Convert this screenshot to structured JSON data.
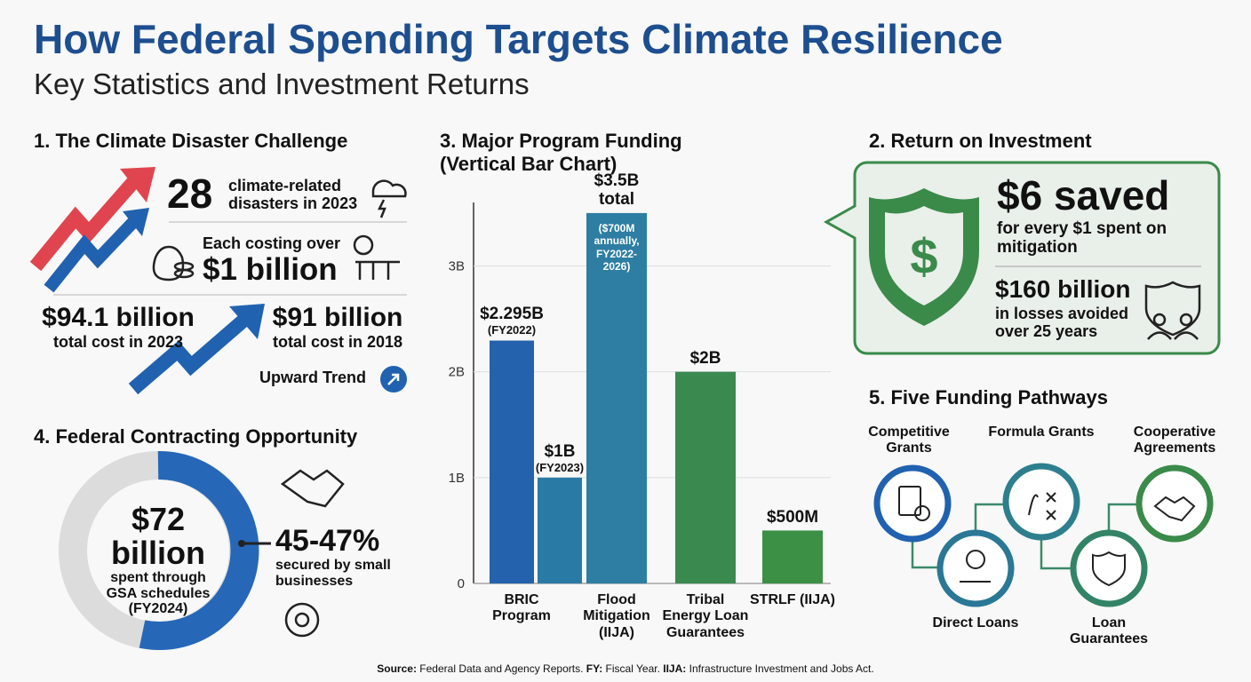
{
  "header": {
    "title": "How Federal Spending Targets Climate Resilience",
    "subtitle": "Key Statistics and Investment Returns"
  },
  "section1": {
    "title": "1. The Climate Disaster Challenge",
    "disasters_count": "28",
    "disasters_text": "climate-related disasters in 2023",
    "cost_each_label": "Each costing over",
    "cost_each_value": "$1 billion",
    "cost_2023_value": "$94.1 billion",
    "cost_2023_label": "total cost in 2023",
    "cost_2018_value": "$91 billion",
    "cost_2018_label": "total cost in 2018",
    "trend": "Upward Trend"
  },
  "section2": {
    "title": "2. Return on Investment",
    "roi_value": "$6 saved",
    "roi_text": "for every $1 spent on mitigation",
    "losses_value": "$160 billion",
    "losses_text": "in losses avoided over 25 years"
  },
  "chart_data": {
    "type": "bar",
    "title": "3. Major Program Funding (Vertical Bar Chart)",
    "categories": [
      "BRIC Program",
      null,
      "Flood Mitigation (IIJA)",
      "Tribal Energy Loan Guarantees",
      "STRLF (IIJA)"
    ],
    "values": [
      2.295,
      1,
      3.5,
      2,
      0.5
    ],
    "value_labels": [
      "$2.295B",
      "$1B",
      "$3.5B total",
      "$2B",
      "$500M"
    ],
    "value_notes": [
      "(FY2022)",
      "(FY2023)",
      "($700M annually, FY2022-2026)",
      null,
      null
    ],
    "colors": [
      "#2462ad",
      "#2a7aa6",
      "#2d7ea2",
      "#3a8a50",
      "#3b9046"
    ],
    "ylim": [
      0,
      3.6
    ],
    "yticks": [
      0,
      {
        "value": 1,
        "label": "1B"
      },
      {
        "value": 2,
        "label": "2B"
      },
      {
        "value": 3,
        "label": "3B"
      }
    ],
    "grid": true
  },
  "section4": {
    "title": "4. Federal Contracting Opportunity",
    "donut_value": "$72 billion",
    "donut_text": "spent through GSA schedules (FY2024)",
    "share_value": "45-47%",
    "share_text": "secured by small businesses"
  },
  "section5": {
    "title": "5. Five Funding Pathways",
    "pathways": [
      "Competitive Grants",
      "Formula Grants",
      "Cooperative Agreements",
      "Direct Loans",
      "Loan Guarantees"
    ]
  },
  "footer": {
    "parts": [
      "Source:",
      "Federal Data and Agency Reports.",
      "FY:",
      "Fiscal Year.",
      "IIJA:",
      "Infrastructure Investment and Jobs Act."
    ]
  }
}
